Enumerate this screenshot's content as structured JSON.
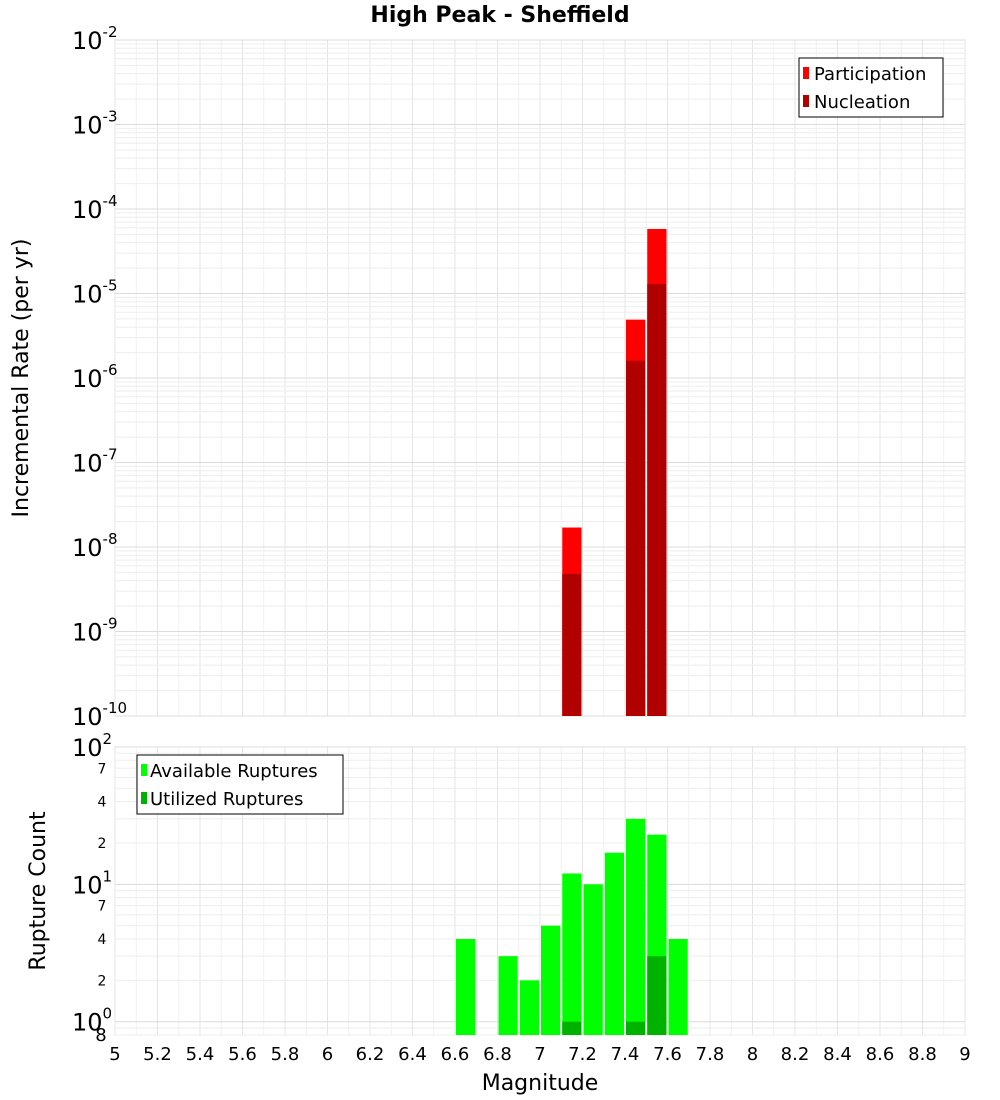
{
  "chart_data": [
    {
      "type": "bar",
      "title": "High Peak - Sheffield",
      "ylabel": "Incremental Rate (per yr)",
      "xlabel": "Magnitude",
      "yscale": "log",
      "ylim": [
        1e-10,
        0.01
      ],
      "xlim": [
        5,
        9
      ],
      "bin_width": 0.1,
      "y_tick_labels": [
        {
          "base": "10",
          "exp": "-2",
          "value": 0.01
        },
        {
          "base": "10",
          "exp": "-3",
          "value": 0.001
        },
        {
          "base": "10",
          "exp": "-4",
          "value": 0.0001
        },
        {
          "base": "10",
          "exp": "-5",
          "value": 1e-05
        },
        {
          "base": "10",
          "exp": "-6",
          "value": 1e-06
        },
        {
          "base": "10",
          "exp": "-7",
          "value": 1e-07
        },
        {
          "base": "10",
          "exp": "-8",
          "value": 1e-08
        },
        {
          "base": "10",
          "exp": "-9",
          "value": 1e-09
        },
        {
          "base": "10",
          "exp": "-10",
          "value": 1e-10
        }
      ],
      "legend": [
        "Participation",
        "Nucleation"
      ],
      "series": [
        {
          "name": "Participation",
          "color": "#ff0000",
          "x": [
            7.15,
            7.45,
            7.55
          ],
          "values": [
            1.7e-08,
            4.9e-06,
            5.8e-05
          ]
        },
        {
          "name": "Nucleation",
          "color": "#b00000",
          "x": [
            7.15,
            7.45,
            7.55
          ],
          "values": [
            4.8e-09,
            1.6e-06,
            1.3e-05
          ]
        }
      ]
    },
    {
      "type": "bar",
      "ylabel": "Rupture Count",
      "xlabel": "Magnitude",
      "yscale": "log",
      "ylim": [
        0.8,
        100
      ],
      "xlim": [
        5,
        9
      ],
      "bin_width": 0.1,
      "y_tick_labels": [
        {
          "base": "10",
          "exp": "2",
          "value": 100
        },
        {
          "base": "10",
          "exp": "1",
          "value": 10
        },
        {
          "base": "10",
          "exp": "0",
          "value": 1
        }
      ],
      "y_minor_tick_labels": [
        {
          "label": "7",
          "value": 70
        },
        {
          "label": "4",
          "value": 40
        },
        {
          "label": "2",
          "value": 20
        },
        {
          "label": "7",
          "value": 7
        },
        {
          "label": "4",
          "value": 4
        },
        {
          "label": "2",
          "value": 2
        },
        {
          "label": "8",
          "value": 0.8
        }
      ],
      "x_ticks": [
        "5",
        "5.2",
        "5.4",
        "5.6",
        "5.8",
        "6",
        "6.2",
        "6.4",
        "6.6",
        "6.8",
        "7",
        "7.2",
        "7.4",
        "7.6",
        "7.8",
        "8",
        "8.2",
        "8.4",
        "8.6",
        "8.8",
        "9"
      ],
      "legend": [
        "Available Ruptures",
        "Utilized Ruptures"
      ],
      "series": [
        {
          "name": "Available Ruptures",
          "color": "#00ff00",
          "x": [
            6.65,
            6.85,
            6.95,
            7.05,
            7.15,
            7.25,
            7.35,
            7.45,
            7.55,
            7.65
          ],
          "values": [
            4,
            3,
            2,
            5,
            12,
            10,
            17,
            30,
            23,
            4
          ]
        },
        {
          "name": "Utilized Ruptures",
          "color": "#00b200",
          "x": [
            7.15,
            7.45,
            7.55
          ],
          "values": [
            1,
            1,
            3
          ]
        }
      ]
    }
  ]
}
